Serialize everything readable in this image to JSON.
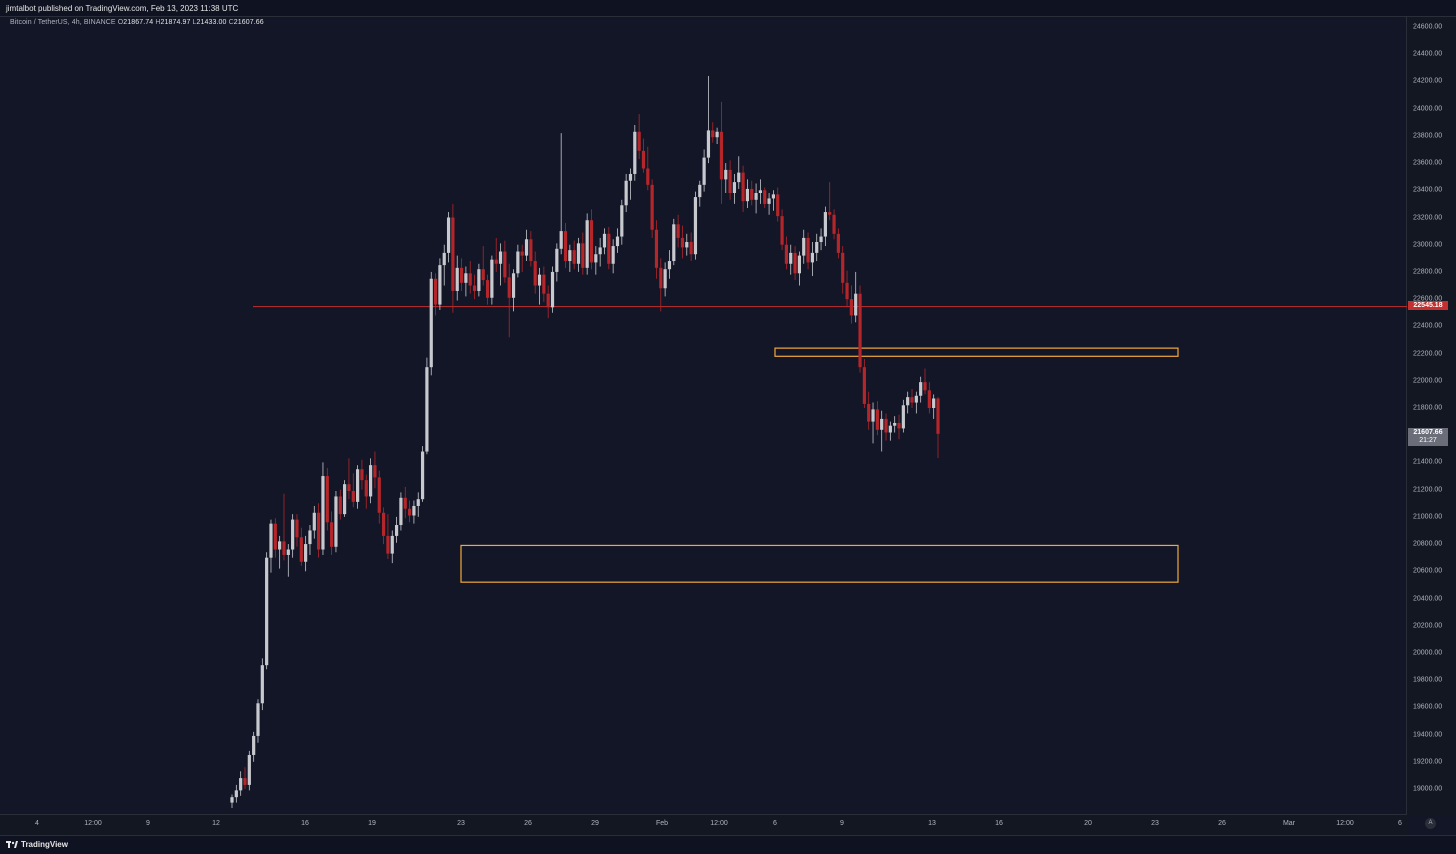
{
  "header": {
    "published_text": "jimtalbot published on TradingView.com, Feb 13, 2023 11:38 UTC"
  },
  "symbol": {
    "name": "Bitcoin / TetherUS, 4h, BINANCE",
    "o_label": "O",
    "o_value": "21867.74",
    "h_label": "H",
    "h_value": "21874.97",
    "l_label": "L",
    "l_value": "21433.00",
    "c_label": "C",
    "c_value": "21607.66"
  },
  "price_axis": {
    "ticks": [
      "24600.00",
      "24400.00",
      "24200.00",
      "24000.00",
      "23800.00",
      "23600.00",
      "23400.00",
      "23200.00",
      "23000.00",
      "22800.00",
      "22600.00",
      "22400.00",
      "22200.00",
      "22000.00",
      "21800.00",
      "21600.00",
      "21400.00",
      "21200.00",
      "21000.00",
      "20800.00",
      "20600.00",
      "20400.00",
      "20200.00",
      "20000.00",
      "19800.00",
      "19600.00",
      "19400.00",
      "19200.00",
      "19000.00"
    ],
    "tick_values": [
      24600,
      24400,
      24200,
      24000,
      23800,
      23600,
      23400,
      23200,
      23000,
      22800,
      22600,
      22400,
      22200,
      22000,
      21800,
      21600,
      21400,
      21200,
      21000,
      20800,
      20600,
      20400,
      20200,
      20000,
      19800,
      19600,
      19400,
      19200,
      19000
    ],
    "horizontal_line_label": "22545.18",
    "horizontal_line_value": 22545.18,
    "last_price_label": "21607.66",
    "last_price_value": 21607.66,
    "countdown_label": "21:27"
  },
  "time_axis": {
    "ticks": [
      "4",
      "12:00",
      "9",
      "12",
      "16",
      "19",
      "23",
      "26",
      "29",
      "Feb",
      "12:00",
      "6",
      "9",
      "13",
      "16",
      "20",
      "23",
      "26",
      "Mar",
      "12:00",
      "6"
    ]
  },
  "auto_button": "A",
  "footer": {
    "brand": "TradingView"
  },
  "colors": {
    "background": "#121626",
    "up_candle": "#c8c9cf",
    "down_candle": "#b4262a",
    "hline": "#c2302f",
    "zone_border": "#f2a93b",
    "last_price_bg": "#6b6e78"
  },
  "chart_data": {
    "type": "candlestick",
    "symbol": "Bitcoin / TetherUS",
    "interval": "4h",
    "exchange": "BINANCE",
    "ylim": [
      18900,
      24700
    ],
    "x_tick_labels": [
      "4",
      "12:00",
      "9",
      "12",
      "16",
      "19",
      "23",
      "26",
      "29",
      "Feb",
      "12:00",
      "6",
      "9",
      "13",
      "16",
      "20",
      "23",
      "26",
      "Mar",
      "12:00",
      "6"
    ],
    "horizontal_line": 22545.18,
    "zones": [
      {
        "top": 22240,
        "bottom": 22180
      },
      {
        "top": 20790,
        "bottom": 20520
      }
    ],
    "candles_ohlc": [
      [
        18900,
        18960,
        18860,
        18940
      ],
      [
        18940,
        19030,
        18900,
        18990
      ],
      [
        18990,
        19130,
        18950,
        19080
      ],
      [
        19080,
        19160,
        19000,
        19030
      ],
      [
        19030,
        19280,
        18990,
        19250
      ],
      [
        19250,
        19420,
        19200,
        19390
      ],
      [
        19390,
        19660,
        19340,
        19630
      ],
      [
        19630,
        19960,
        19580,
        19910
      ],
      [
        19910,
        20740,
        19880,
        20700
      ],
      [
        20700,
        20980,
        20590,
        20950
      ],
      [
        20950,
        20990,
        20700,
        20760
      ],
      [
        20760,
        20860,
        20620,
        20820
      ],
      [
        20820,
        21170,
        20680,
        20720
      ],
      [
        20720,
        20800,
        20560,
        20760
      ],
      [
        20760,
        21020,
        20700,
        20980
      ],
      [
        20980,
        21020,
        20780,
        20850
      ],
      [
        20850,
        20920,
        20640,
        20670
      ],
      [
        20670,
        20860,
        20600,
        20800
      ],
      [
        20800,
        20940,
        20720,
        20900
      ],
      [
        20900,
        21080,
        20840,
        21030
      ],
      [
        21030,
        21100,
        20700,
        20760
      ],
      [
        20760,
        21400,
        20720,
        21300
      ],
      [
        21300,
        21360,
        20900,
        20960
      ],
      [
        20960,
        21040,
        20720,
        20780
      ],
      [
        20780,
        21190,
        20740,
        21150
      ],
      [
        21150,
        21200,
        20980,
        21020
      ],
      [
        21020,
        21270,
        21000,
        21240
      ],
      [
        21240,
        21430,
        21130,
        21190
      ],
      [
        21190,
        21320,
        21070,
        21110
      ],
      [
        21110,
        21380,
        21060,
        21350
      ],
      [
        21350,
        21420,
        21200,
        21270
      ],
      [
        21270,
        21310,
        21060,
        21150
      ],
      [
        21150,
        21430,
        21100,
        21380
      ],
      [
        21380,
        21480,
        21210,
        21290
      ],
      [
        21290,
        21340,
        20950,
        21030
      ],
      [
        21030,
        21070,
        20800,
        20860
      ],
      [
        20860,
        21020,
        20690,
        20730
      ],
      [
        20730,
        20900,
        20660,
        20860
      ],
      [
        20860,
        21000,
        20810,
        20940
      ],
      [
        20940,
        21180,
        20900,
        21140
      ],
      [
        21140,
        21220,
        20990,
        21060
      ],
      [
        21060,
        21120,
        20960,
        21010
      ],
      [
        21010,
        21120,
        20950,
        21080
      ],
      [
        21080,
        21180,
        21000,
        21130
      ],
      [
        21130,
        21520,
        21110,
        21480
      ],
      [
        21480,
        22170,
        21460,
        22100
      ],
      [
        22100,
        22800,
        22040,
        22750
      ],
      [
        22750,
        22790,
        22480,
        22560
      ],
      [
        22560,
        22900,
        22520,
        22850
      ],
      [
        22850,
        23000,
        22700,
        22940
      ],
      [
        22940,
        23240,
        22870,
        23200
      ],
      [
        23200,
        23300,
        22500,
        22660
      ],
      [
        22660,
        22920,
        22590,
        22830
      ],
      [
        22830,
        22900,
        22660,
        22720
      ],
      [
        22720,
        22840,
        22620,
        22790
      ],
      [
        22790,
        22880,
        22640,
        22700
      ],
      [
        22700,
        22780,
        22600,
        22660
      ],
      [
        22660,
        22860,
        22620,
        22820
      ],
      [
        22820,
        22990,
        22700,
        22740
      ],
      [
        22740,
        22780,
        22560,
        22610
      ],
      [
        22610,
        22920,
        22560,
        22890
      ],
      [
        22890,
        23050,
        22800,
        22860
      ],
      [
        22860,
        23010,
        22700,
        22950
      ],
      [
        22950,
        23030,
        22720,
        22760
      ],
      [
        22760,
        22860,
        22320,
        22610
      ],
      [
        22610,
        22820,
        22510,
        22790
      ],
      [
        22790,
        23000,
        22760,
        22950
      ],
      [
        22950,
        23000,
        22800,
        22920
      ],
      [
        22920,
        23110,
        22880,
        23040
      ],
      [
        23040,
        23100,
        22840,
        22880
      ],
      [
        22880,
        22950,
        22640,
        22700
      ],
      [
        22700,
        22830,
        22560,
        22780
      ],
      [
        22780,
        22840,
        22580,
        22640
      ],
      [
        22640,
        22700,
        22460,
        22540
      ],
      [
        22540,
        22840,
        22500,
        22800
      ],
      [
        22800,
        23010,
        22730,
        22970
      ],
      [
        22970,
        23820,
        22930,
        23100
      ],
      [
        23100,
        23160,
        22830,
        22880
      ],
      [
        22880,
        23000,
        22800,
        22960
      ],
      [
        22960,
        23030,
        22820,
        22860
      ],
      [
        22860,
        23050,
        22800,
        23010
      ],
      [
        23010,
        23090,
        22780,
        22830
      ],
      [
        22830,
        23230,
        22780,
        23180
      ],
      [
        23180,
        23260,
        22820,
        22870
      ],
      [
        22870,
        22990,
        22780,
        22930
      ],
      [
        22930,
        23050,
        22840,
        22980
      ],
      [
        22980,
        23120,
        22930,
        23080
      ],
      [
        23080,
        23130,
        22820,
        22860
      ],
      [
        22860,
        23040,
        22790,
        22990
      ],
      [
        22990,
        23120,
        22940,
        23060
      ],
      [
        23060,
        23330,
        23000,
        23290
      ],
      [
        23290,
        23520,
        23240,
        23470
      ],
      [
        23470,
        23560,
        23330,
        23520
      ],
      [
        23520,
        23880,
        23470,
        23830
      ],
      [
        23830,
        23960,
        23630,
        23690
      ],
      [
        23690,
        23780,
        23530,
        23560
      ],
      [
        23560,
        23720,
        23400,
        23440
      ],
      [
        23440,
        23480,
        23050,
        23110
      ],
      [
        23110,
        23180,
        22750,
        22830
      ],
      [
        22830,
        22900,
        22510,
        22680
      ],
      [
        22680,
        22870,
        22620,
        22820
      ],
      [
        22820,
        22960,
        22750,
        22880
      ],
      [
        22880,
        23190,
        22850,
        23150
      ],
      [
        23150,
        23220,
        22980,
        23050
      ],
      [
        23050,
        23140,
        22900,
        22980
      ],
      [
        22980,
        23080,
        22920,
        23020
      ],
      [
        23020,
        23090,
        22880,
        22930
      ],
      [
        22930,
        23390,
        22890,
        23350
      ],
      [
        23350,
        23470,
        23280,
        23440
      ],
      [
        23440,
        23700,
        23390,
        23640
      ],
      [
        23640,
        24240,
        23600,
        23840
      ],
      [
        23840,
        23900,
        23750,
        23790
      ],
      [
        23790,
        23860,
        23740,
        23830
      ],
      [
        23830,
        24050,
        23300,
        23480
      ],
      [
        23480,
        23600,
        23380,
        23550
      ],
      [
        23550,
        23620,
        23330,
        23380
      ],
      [
        23380,
        23520,
        23300,
        23460
      ],
      [
        23460,
        23650,
        23410,
        23530
      ],
      [
        23530,
        23580,
        23240,
        23320
      ],
      [
        23320,
        23480,
        23270,
        23410
      ],
      [
        23410,
        23470,
        23290,
        23330
      ],
      [
        23330,
        23450,
        23230,
        23380
      ],
      [
        23380,
        23480,
        23300,
        23400
      ],
      [
        23400,
        23420,
        23270,
        23300
      ],
      [
        23300,
        23380,
        23220,
        23340
      ],
      [
        23340,
        23400,
        23250,
        23370
      ],
      [
        23370,
        23420,
        23170,
        23210
      ],
      [
        23210,
        23260,
        22960,
        23000
      ],
      [
        23000,
        23060,
        22820,
        22860
      ],
      [
        22860,
        23000,
        22780,
        22940
      ],
      [
        22940,
        22990,
        22740,
        22790
      ],
      [
        22790,
        22950,
        22700,
        22920
      ],
      [
        22920,
        23110,
        22860,
        23050
      ],
      [
        23050,
        23090,
        22820,
        22870
      ],
      [
        22870,
        23020,
        22770,
        22940
      ],
      [
        22940,
        23080,
        22880,
        23020
      ],
      [
        23020,
        23120,
        22960,
        23060
      ],
      [
        23060,
        23280,
        22990,
        23240
      ],
      [
        23240,
        23460,
        23180,
        23220
      ],
      [
        23220,
        23260,
        23040,
        23080
      ],
      [
        23080,
        23120,
        22900,
        22940
      ],
      [
        22940,
        22990,
        22640,
        22720
      ],
      [
        22720,
        22810,
        22540,
        22600
      ],
      [
        22600,
        22700,
        22420,
        22480
      ],
      [
        22480,
        22800,
        22430,
        22640
      ],
      [
        22640,
        22700,
        22060,
        22100
      ],
      [
        22100,
        22160,
        21800,
        21830
      ],
      [
        21830,
        21920,
        21640,
        21700
      ],
      [
        21700,
        21840,
        21540,
        21790
      ],
      [
        21790,
        21850,
        21600,
        21640
      ],
      [
        21640,
        21780,
        21480,
        21720
      ],
      [
        21720,
        21760,
        21560,
        21620
      ],
      [
        21620,
        21700,
        21560,
        21670
      ],
      [
        21670,
        21740,
        21620,
        21690
      ],
      [
        21690,
        21750,
        21570,
        21650
      ],
      [
        21650,
        21860,
        21620,
        21820
      ],
      [
        21820,
        21920,
        21760,
        21880
      ],
      [
        21880,
        21940,
        21800,
        21840
      ],
      [
        21840,
        21920,
        21760,
        21890
      ],
      [
        21890,
        22030,
        21840,
        21990
      ],
      [
        21990,
        22090,
        21900,
        21930
      ],
      [
        21930,
        21990,
        21760,
        21800
      ],
      [
        21800,
        21900,
        21720,
        21870
      ],
      [
        21870,
        21880,
        21433,
        21610
      ]
    ]
  }
}
